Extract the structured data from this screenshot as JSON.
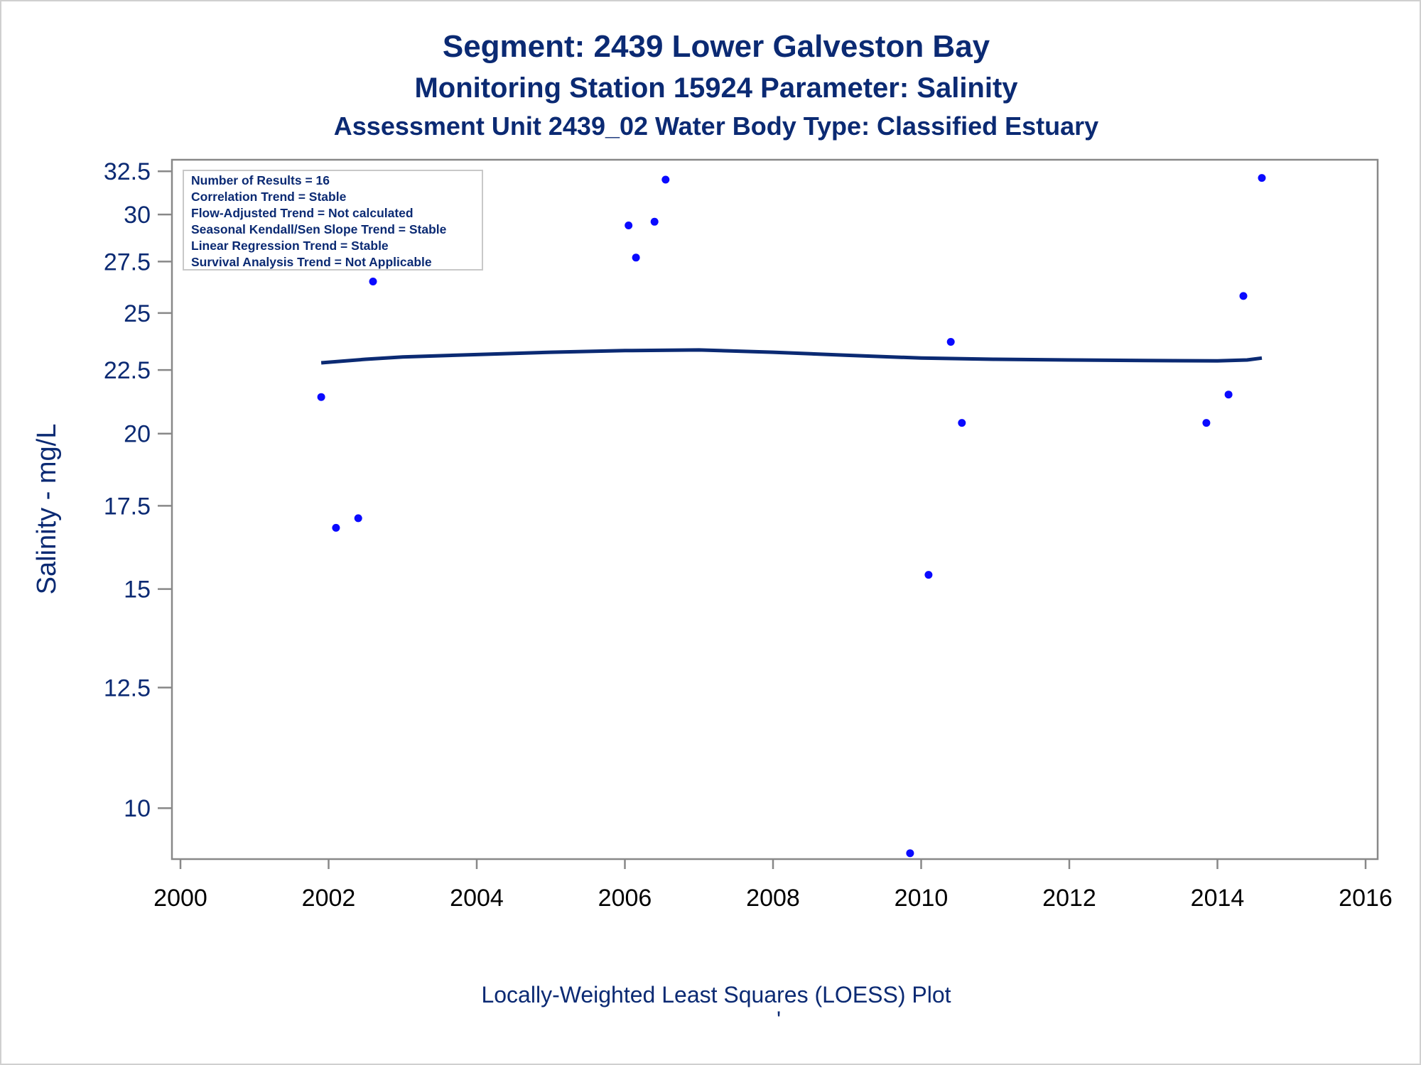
{
  "chart_data": {
    "type": "scatter",
    "title": "Segment: 2439  Lower Galveston Bay",
    "subtitle": "Monitoring Station 15924 Parameter: Salinity",
    "subtitle2": "Assessment Unit 2439_02   Water Body Type: Classified Estuary",
    "xlabel": "",
    "ylabel": "Salinity - mg/L",
    "footnote": "Locally-Weighted Least Squares (LOESS) Plot",
    "footnote_mark": "'",
    "y_scale": "log",
    "xlim": [
      2000,
      2016
    ],
    "ylim": [
      9.1,
      33.2
    ],
    "x_ticks": [
      "2000",
      "2002",
      "2004",
      "2006",
      "2008",
      "2010",
      "2012",
      "2014",
      "2016"
    ],
    "y_ticks": [
      "10",
      "12.5",
      "15",
      "17.5",
      "20",
      "22.5",
      "25",
      "27.5",
      "30",
      "32.5"
    ],
    "grid": false,
    "inset_lines": [
      "Number of Results = 16",
      "Correlation Trend = Stable",
      "Flow-Adjusted Trend = Not calculated",
      "Seasonal Kendall/Sen Slope Trend = Stable",
      "Linear Regression Trend = Stable",
      "Survival Analysis Trend = Not Applicable"
    ],
    "inset_placement": "top-left",
    "points": [
      {
        "x": 2001.9,
        "y": 21.4
      },
      {
        "x": 2002.1,
        "y": 16.8
      },
      {
        "x": 2002.4,
        "y": 17.1
      },
      {
        "x": 2002.6,
        "y": 26.5
      },
      {
        "x": 2006.05,
        "y": 29.4
      },
      {
        "x": 2006.15,
        "y": 27.7
      },
      {
        "x": 2006.4,
        "y": 29.6
      },
      {
        "x": 2006.55,
        "y": 32.0
      },
      {
        "x": 2009.85,
        "y": 9.2
      },
      {
        "x": 2010.1,
        "y": 15.4
      },
      {
        "x": 2010.4,
        "y": 23.7
      },
      {
        "x": 2010.55,
        "y": 20.4
      },
      {
        "x": 2013.85,
        "y": 20.4
      },
      {
        "x": 2014.15,
        "y": 21.5
      },
      {
        "x": 2014.35,
        "y": 25.8
      },
      {
        "x": 2014.6,
        "y": 32.1
      }
    ],
    "loess": [
      {
        "x": 2001.9,
        "y": 22.8
      },
      {
        "x": 2002.5,
        "y": 22.95
      },
      {
        "x": 2003.0,
        "y": 23.05
      },
      {
        "x": 2004.0,
        "y": 23.15
      },
      {
        "x": 2005.0,
        "y": 23.25
      },
      {
        "x": 2006.0,
        "y": 23.32
      },
      {
        "x": 2007.0,
        "y": 23.35
      },
      {
        "x": 2008.0,
        "y": 23.25
      },
      {
        "x": 2009.0,
        "y": 23.12
      },
      {
        "x": 2010.0,
        "y": 23.0
      },
      {
        "x": 2011.0,
        "y": 22.95
      },
      {
        "x": 2012.0,
        "y": 22.92
      },
      {
        "x": 2013.0,
        "y": 22.9
      },
      {
        "x": 2014.0,
        "y": 22.88
      },
      {
        "x": 2014.4,
        "y": 22.92
      },
      {
        "x": 2014.6,
        "y": 23.0
      }
    ],
    "colors": {
      "text": "#0b2a73",
      "points": "#0a0aff",
      "loess": "#0b2a73",
      "axis": "#888888",
      "xtick_text": "#000000"
    }
  }
}
